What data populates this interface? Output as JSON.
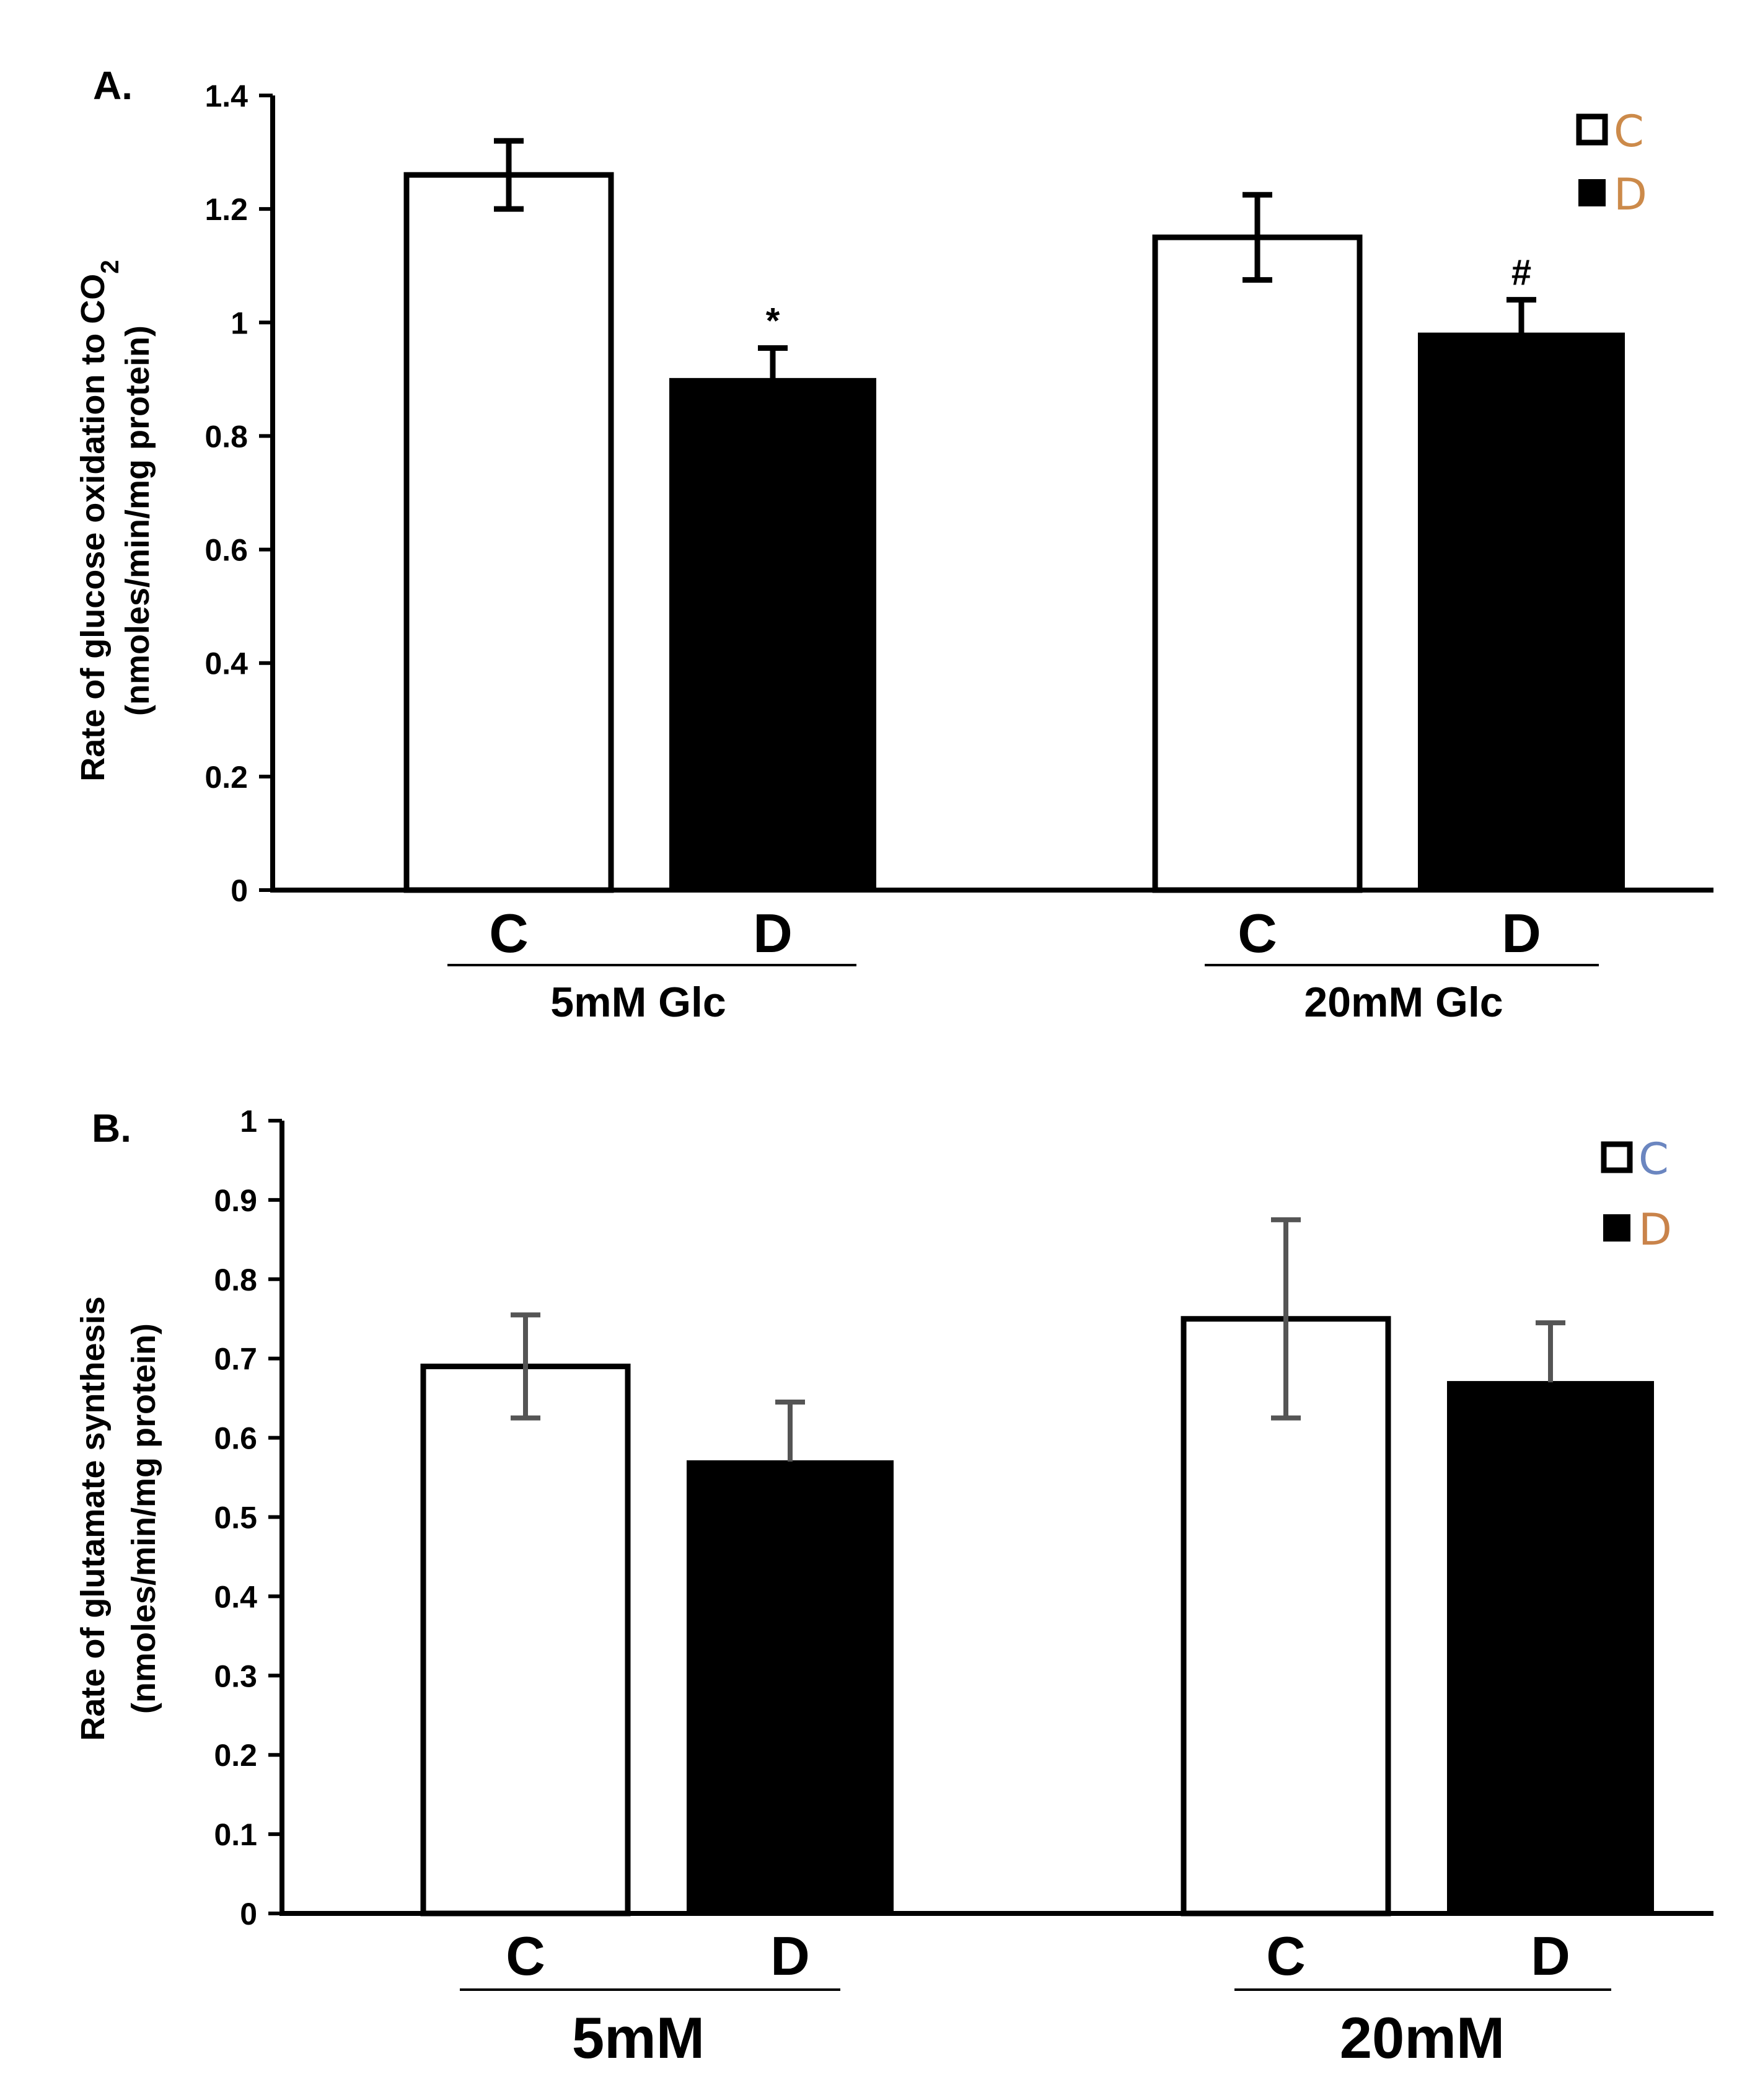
{
  "chart_data": [
    {
      "type": "bar",
      "panel_label": "A.",
      "ylabel_line1": "Rate of glucose oxidation to CO",
      "ylabel_sub": "2",
      "ylabel_line2": "(nmoles/min/mg protein)",
      "ylim": [
        0,
        1.4
      ],
      "yticks": [
        "0",
        "0.2",
        "0.4",
        "0.6",
        "0.8",
        "1",
        "1.2",
        "1.4"
      ],
      "grid": false,
      "legend_position": "top-right",
      "groups": [
        {
          "label": "5mM Glc",
          "bars": [
            {
              "category": "C",
              "value": 1.26,
              "err": 0.06,
              "fill": "white",
              "annotation": ""
            },
            {
              "category": "D",
              "value": 0.9,
              "err": 0.055,
              "fill": "black",
              "annotation": "*"
            }
          ]
        },
        {
          "label": "20mM Glc",
          "bars": [
            {
              "category": "C",
              "value": 1.15,
              "err": 0.075,
              "fill": "white",
              "annotation": ""
            },
            {
              "category": "D",
              "value": 0.98,
              "err": 0.06,
              "fill": "black",
              "annotation": "#"
            }
          ]
        }
      ],
      "legend": [
        {
          "label": "C",
          "fill": "white",
          "text_color": "#cc8a4a"
        },
        {
          "label": "D",
          "fill": "black",
          "text_color": "#cc8a4a"
        }
      ]
    },
    {
      "type": "bar",
      "panel_label": "B.",
      "ylabel_line1": "Rate of glutamate synthesis",
      "ylabel_sub": "",
      "ylabel_line2": "(nmoles/min/mg protein)",
      "ylim": [
        0,
        1
      ],
      "yticks": [
        "0",
        "0.1",
        "0.2",
        "0.3",
        "0.4",
        "0.5",
        "0.6",
        "0.7",
        "0.8",
        "0.9",
        "1"
      ],
      "grid": false,
      "legend_position": "top-right",
      "groups": [
        {
          "label": "5mM",
          "bars": [
            {
              "category": "C",
              "value": 0.69,
              "err": 0.065,
              "fill": "white",
              "annotation": ""
            },
            {
              "category": "D",
              "value": 0.57,
              "err": 0.075,
              "fill": "black",
              "annotation": ""
            }
          ]
        },
        {
          "label": "20mM",
          "bars": [
            {
              "category": "C",
              "value": 0.75,
              "err": 0.125,
              "fill": "white",
              "annotation": ""
            },
            {
              "category": "D",
              "value": 0.67,
              "err": 0.075,
              "fill": "black",
              "annotation": ""
            }
          ]
        }
      ],
      "legend": [
        {
          "label": "C",
          "fill": "white",
          "text_color": "#6b86c0"
        },
        {
          "label": "D",
          "fill": "black",
          "text_color": "#c9834a"
        }
      ]
    }
  ]
}
